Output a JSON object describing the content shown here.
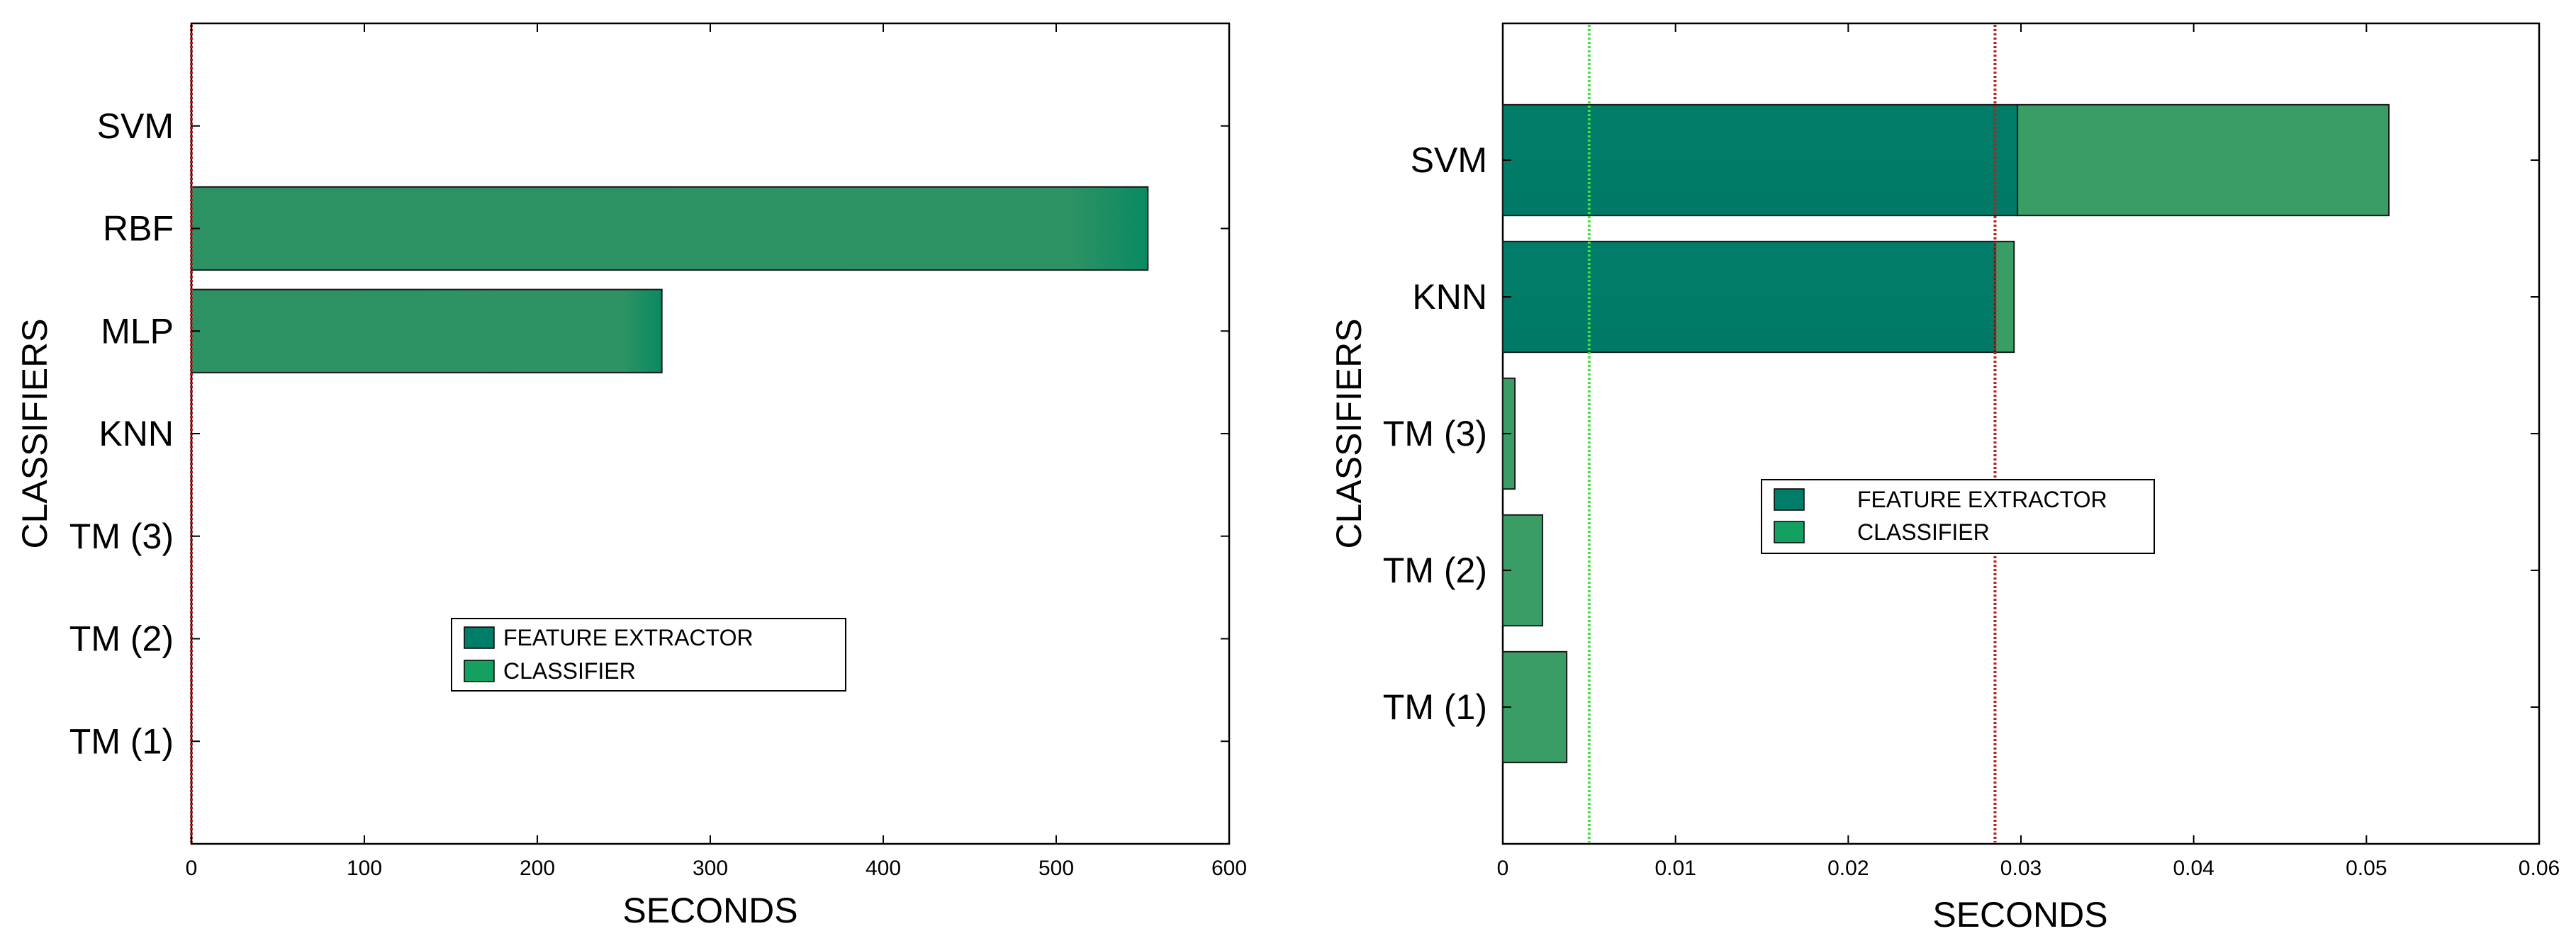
{
  "chart_data": [
    {
      "type": "bar",
      "orientation": "horizontal",
      "stacked": true,
      "xlabel": "SECONDS",
      "ylabel": "CLASSIFIERS",
      "xlim": [
        0,
        600
      ],
      "xticks": [
        "0",
        "100",
        "200",
        "300",
        "400",
        "500",
        "600"
      ],
      "categories": [
        "SVM",
        "RBF",
        "MLP",
        "KNN",
        "TM (3)",
        "TM (2)",
        "TM (1)"
      ],
      "series": [
        {
          "name": "FEATURE EXTRACTOR",
          "color": "#007d68",
          "values": [
            0,
            0,
            0,
            0,
            0,
            0,
            0
          ]
        },
        {
          "name": "CLASSIFIER",
          "color": "#2a9064",
          "values": [
            0,
            553,
            272,
            0,
            0,
            0,
            0
          ]
        }
      ],
      "reference_lines": [
        {
          "x": 0,
          "color": "#b22222",
          "style": "dotted"
        }
      ],
      "legend": {
        "position": "lower-center",
        "entries": [
          "FEATURE EXTRACTOR",
          "CLASSIFIER"
        ]
      },
      "grid": false
    },
    {
      "type": "bar",
      "orientation": "horizontal",
      "stacked": true,
      "xlabel": "SECONDS",
      "ylabel": "CLASSIFIERS",
      "xlim": [
        0,
        0.06
      ],
      "xticks": [
        "0",
        "0.01",
        "0.02",
        "0.03",
        "0.04",
        "0.05",
        "0.06"
      ],
      "categories": [
        "SVM",
        "KNN",
        "TM (3)",
        "TM (2)",
        "TM (1)"
      ],
      "series": [
        {
          "name": "FEATURE EXTRACTOR",
          "color": "#007d68",
          "values": [
            0.0298,
            0.0285,
            0,
            0,
            0
          ]
        },
        {
          "name": "CLASSIFIER",
          "color": "#3a9d66",
          "values": [
            0.0215,
            0.0011,
            0.0007,
            0.0023,
            0.0037
          ]
        }
      ],
      "reference_lines": [
        {
          "x": 0.005,
          "color": "#44dd44",
          "style": "dotted"
        },
        {
          "x": 0.0285,
          "color": "#b22222",
          "style": "dotted"
        }
      ],
      "legend": {
        "position": "center",
        "entries": [
          "FEATURE EXTRACTOR",
          "CLASSIFIER"
        ]
      },
      "grid": false
    }
  ]
}
